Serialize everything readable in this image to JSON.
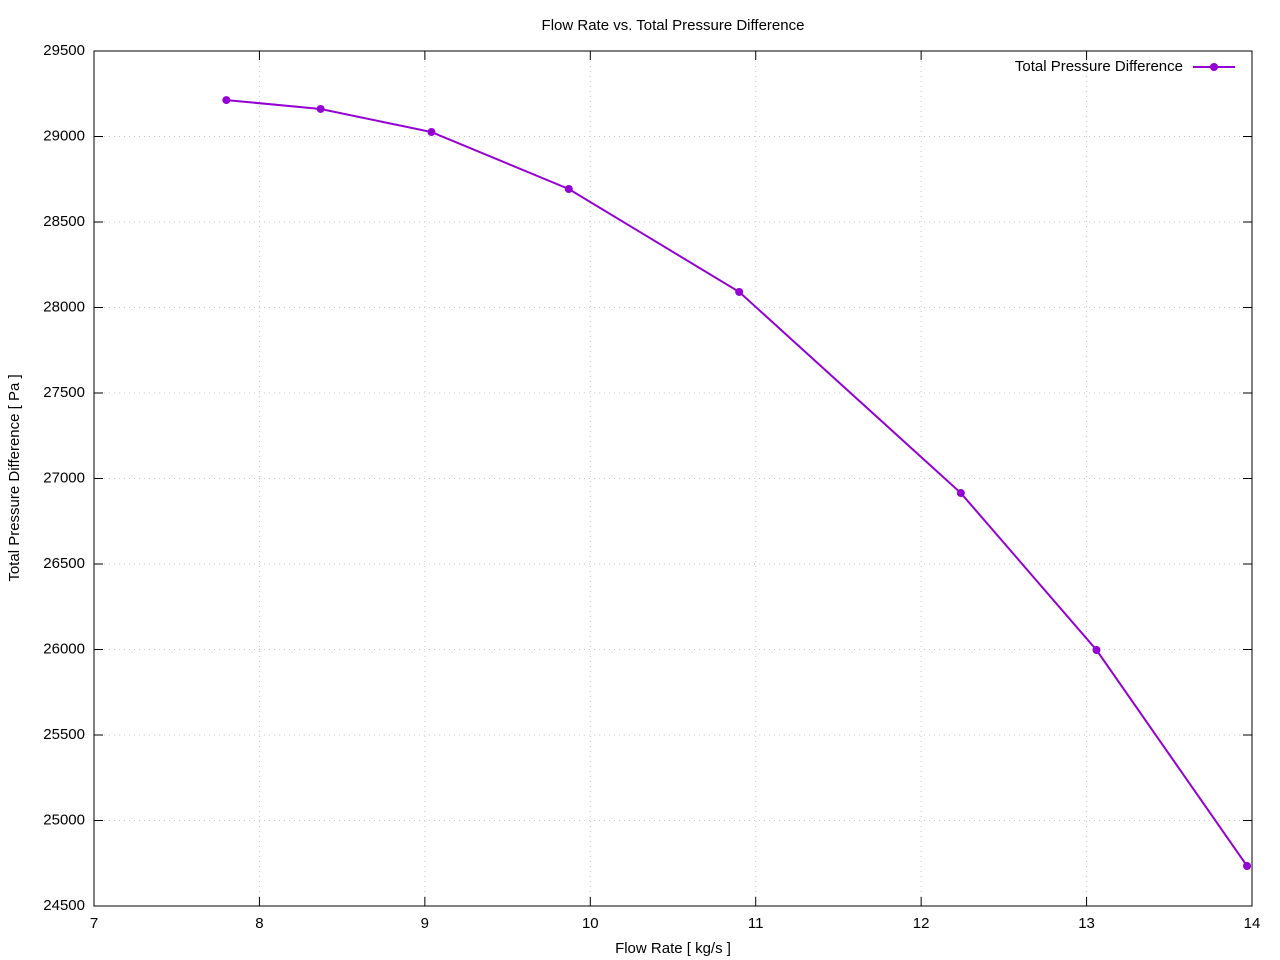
{
  "chart_data": {
    "type": "line",
    "title": "Flow Rate vs. Total Pressure Difference",
    "x_label": "Flow Rate [ kg/s ]",
    "y_label": "Total Pressure Difference [ Pa ]",
    "x": [
      7.8,
      8.37,
      9.04,
      9.87,
      10.9,
      12.24,
      13.06,
      13.97
    ],
    "series": [
      {
        "name": "Total Pressure Difference",
        "color": "#9400d3",
        "values": [
          29213,
          29161,
          29026,
          28693,
          28091,
          26915,
          25997,
          24734
        ]
      }
    ],
    "xlim": [
      7,
      14
    ],
    "xticks": [
      7,
      8,
      9,
      10,
      11,
      12,
      13,
      14
    ],
    "ylim": [
      24500,
      29500
    ],
    "yticks": [
      24500,
      25000,
      25500,
      26000,
      26500,
      27000,
      27500,
      28000,
      28500,
      29000,
      29500
    ],
    "grid": true,
    "legend": "top-right",
    "markers": true
  }
}
